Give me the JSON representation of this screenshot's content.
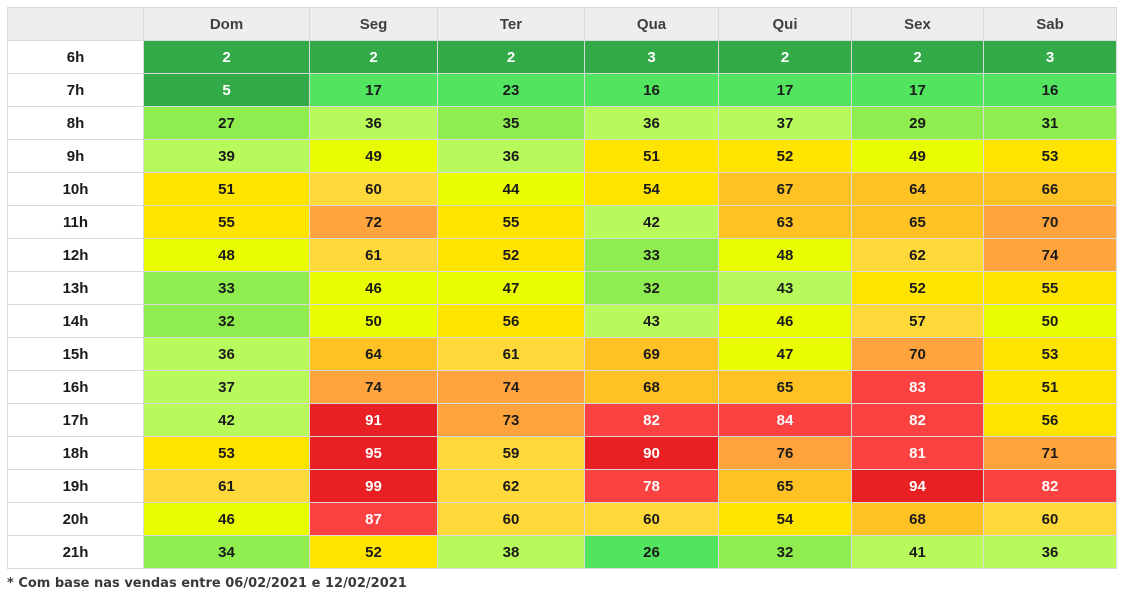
{
  "chart_data": {
    "type": "heatmap",
    "columns": [
      "Dom",
      "Seg",
      "Ter",
      "Qua",
      "Qui",
      "Sex",
      "Sab"
    ],
    "rows": [
      "6h",
      "7h",
      "8h",
      "9h",
      "10h",
      "11h",
      "12h",
      "13h",
      "14h",
      "15h",
      "16h",
      "17h",
      "18h",
      "19h",
      "20h",
      "21h"
    ],
    "values": [
      [
        2,
        2,
        2,
        3,
        2,
        2,
        3
      ],
      [
        5,
        17,
        23,
        16,
        17,
        17,
        16
      ],
      [
        27,
        36,
        35,
        36,
        37,
        29,
        31
      ],
      [
        39,
        49,
        36,
        51,
        52,
        49,
        53
      ],
      [
        51,
        60,
        44,
        54,
        67,
        64,
        66
      ],
      [
        55,
        72,
        55,
        42,
        63,
        65,
        70
      ],
      [
        48,
        61,
        52,
        33,
        48,
        62,
        74
      ],
      [
        33,
        46,
        47,
        32,
        43,
        52,
        55
      ],
      [
        32,
        50,
        56,
        43,
        46,
        57,
        50
      ],
      [
        36,
        64,
        61,
        69,
        47,
        70,
        53
      ],
      [
        37,
        74,
        74,
        68,
        65,
        83,
        51
      ],
      [
        42,
        91,
        73,
        82,
        84,
        82,
        56
      ],
      [
        53,
        95,
        59,
        90,
        76,
        81,
        71
      ],
      [
        61,
        99,
        62,
        78,
        65,
        94,
        82
      ],
      [
        46,
        87,
        60,
        60,
        54,
        68,
        60
      ],
      [
        34,
        52,
        38,
        26,
        32,
        41,
        36
      ]
    ],
    "colors": {
      "green_dark": "#33aa48",
      "green": "#52e45f",
      "lime": "#b8fa5c",
      "yellow_green": "#eafc00",
      "yellow": "#ffe400",
      "amber": "#ffc224",
      "orange": "#ffa43c",
      "red": "#fc4141",
      "red_dark": "#e81f23"
    }
  },
  "footnote": "* Com base nas vendas entre 06/02/2021 e 12/02/2021"
}
